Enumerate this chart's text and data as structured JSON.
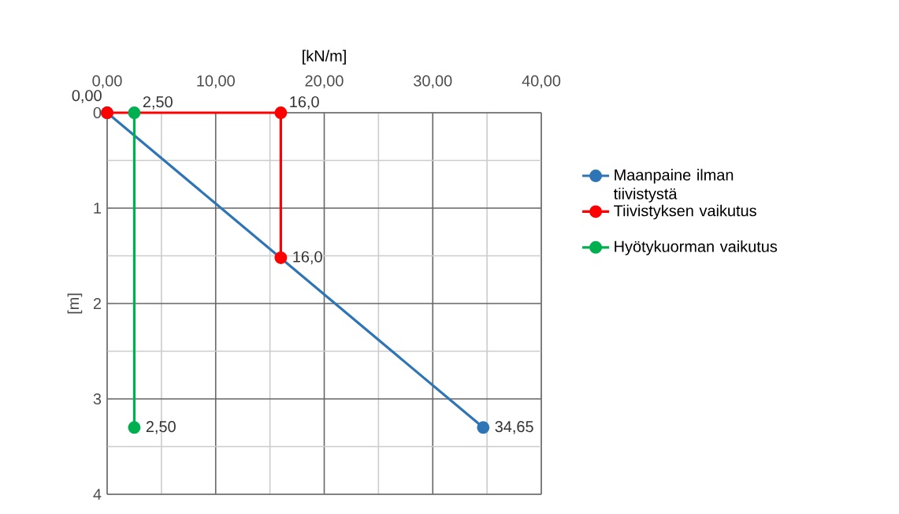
{
  "chart_data": {
    "type": "line",
    "orientation": "horizontal",
    "xlabel": "[kN/m]",
    "ylabel": "[m]",
    "series": [
      {
        "name": "Maanpaine ilman tiivistystä",
        "color": "#2e75b6",
        "x": [
          0,
          3.3
        ],
        "values": [
          0,
          34.65
        ],
        "value_labels": [
          "0,00",
          "34,65"
        ]
      },
      {
        "name": "Tiivistyksen vaikutus",
        "color": "#ff0000",
        "x": [
          0,
          0,
          1.52
        ],
        "values": [
          0,
          16,
          16
        ],
        "value_labels": [
          null,
          "16,0",
          "16,0"
        ]
      },
      {
        "name": "Hyötykuorman vaikutus",
        "color": "#00b050",
        "x": [
          0,
          3.3
        ],
        "values": [
          2.5,
          2.5
        ],
        "value_labels": [
          "2,50",
          "2,50"
        ]
      }
    ],
    "xlim": [
      0,
      40
    ],
    "xticks": [
      {
        "value": 0,
        "label": "0,00"
      },
      {
        "value": 5,
        "label": null
      },
      {
        "value": 10,
        "label": "10,00"
      },
      {
        "value": 15,
        "label": null
      },
      {
        "value": 20,
        "label": "20,00"
      },
      {
        "value": 25,
        "label": null
      },
      {
        "value": 30,
        "label": "30,00"
      },
      {
        "value": 35,
        "label": null
      },
      {
        "value": 40,
        "label": "40,00"
      }
    ],
    "ylim": [
      4,
      0
    ],
    "yticks": [
      0,
      {
        "value": 0.5,
        "label": null
      },
      1,
      {
        "value": 1.5,
        "label": null
      },
      2,
      {
        "value": 2.5,
        "label": null
      },
      3,
      {
        "value": 3.5,
        "label": null
      },
      4
    ],
    "grid": true,
    "legend": "right",
    "marker": "circle",
    "line_style": "solid"
  }
}
